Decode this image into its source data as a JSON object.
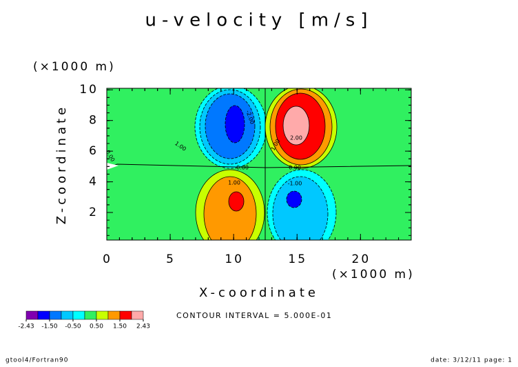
{
  "chart_data": {
    "type": "contour",
    "title": "u-velocity [m/s]",
    "x_label": "X-coordinate",
    "x_unit": "(×1000 m)",
    "y_label": "Z-coordinate",
    "y_unit": "(×1000 m)",
    "xlim": [
      0,
      24
    ],
    "ylim": [
      0.2,
      10.1
    ],
    "xticks": [
      0,
      5,
      10,
      15,
      20
    ],
    "yticks": [
      2,
      4,
      6,
      8,
      10
    ],
    "contour_labels": [
      "0.00",
      "0.00",
      "1.00",
      "-1.00",
      "1.00",
      "-2.00",
      "1.00",
      "2.00",
      "0.00"
    ],
    "colorbar": {
      "colors": [
        "#8000b0",
        "#0000ff",
        "#0078ff",
        "#00c8ff",
        "#00ffff",
        "#30f060",
        "#c8ff00",
        "#ff9900",
        "#ff0000",
        "#ffaaaa"
      ],
      "ticks": [
        {
          "value": -2.43,
          "label": "-2.43"
        },
        {
          "value": -1.5,
          "label": "-1.50"
        },
        {
          "value": -0.5,
          "label": "-0.50"
        },
        {
          "value": 0.5,
          "label": "0.50"
        },
        {
          "value": 1.5,
          "label": "1.50"
        },
        {
          "value": 2.43,
          "label": "2.43"
        }
      ]
    },
    "contour_interval": "CONTOUR INTERVAL = 5.000E-01",
    "footer_left": "gtool4/Fortran90",
    "footer_right": "date: 3/12/11 page: 1"
  }
}
